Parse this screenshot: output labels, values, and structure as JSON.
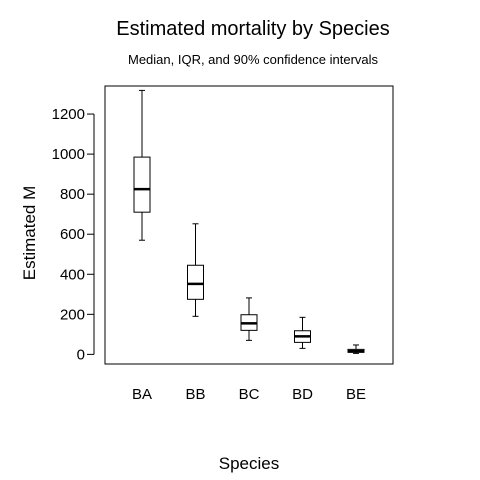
{
  "chart_data": {
    "type": "box",
    "title": "Estimated mortality by Species",
    "subtitle": "Median, IQR, and 90% confidence intervals",
    "xlabel": "Species",
    "ylabel": "Estimated M",
    "ylim": [
      -48,
      1340
    ],
    "yticks": [
      0,
      200,
      400,
      600,
      800,
      1000,
      1200
    ],
    "grid": false,
    "categories": [
      "BA",
      "BB",
      "BC",
      "BD",
      "BE"
    ],
    "boxes": [
      {
        "category": "BA",
        "low": 570,
        "q1": 710,
        "median": 825,
        "q3": 985,
        "high": 1318
      },
      {
        "category": "BB",
        "low": 190,
        "q1": 275,
        "median": 352,
        "q3": 445,
        "high": 652
      },
      {
        "category": "BC",
        "low": 70,
        "q1": 120,
        "median": 155,
        "q3": 198,
        "high": 282
      },
      {
        "category": "BD",
        "low": 30,
        "q1": 60,
        "median": 90,
        "q3": 118,
        "high": 185
      },
      {
        "category": "BE",
        "low": 5,
        "q1": 10,
        "median": 16,
        "q3": 25,
        "high": 47
      }
    ]
  }
}
